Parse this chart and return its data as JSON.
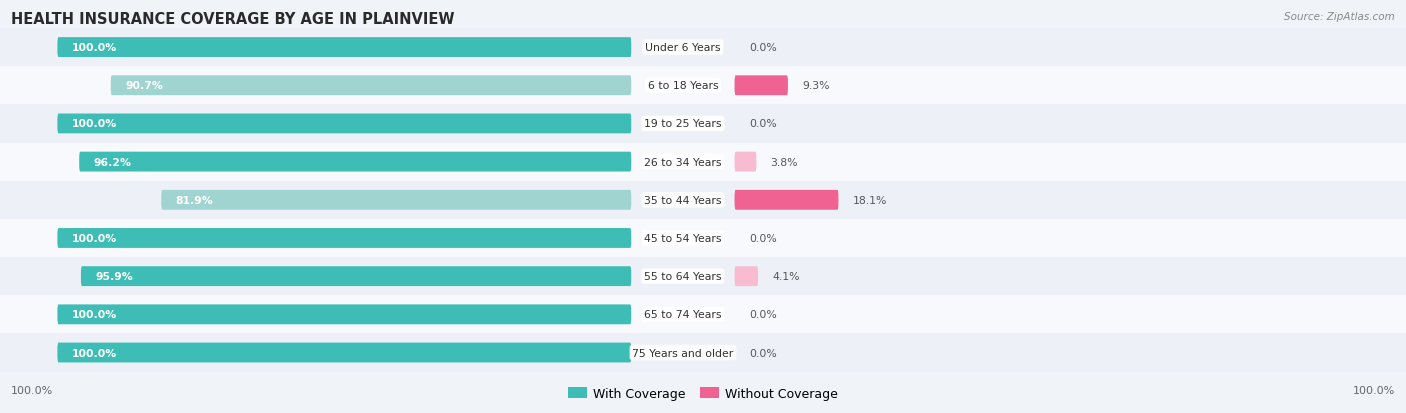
{
  "title": "HEALTH INSURANCE COVERAGE BY AGE IN PLAINVIEW",
  "source": "Source: ZipAtlas.com",
  "categories": [
    "Under 6 Years",
    "6 to 18 Years",
    "19 to 25 Years",
    "26 to 34 Years",
    "35 to 44 Years",
    "45 to 54 Years",
    "55 to 64 Years",
    "65 to 74 Years",
    "75 Years and older"
  ],
  "with_coverage": [
    100.0,
    90.7,
    100.0,
    96.2,
    81.9,
    100.0,
    95.9,
    100.0,
    100.0
  ],
  "without_coverage": [
    0.0,
    9.3,
    0.0,
    3.8,
    18.1,
    0.0,
    4.1,
    0.0,
    0.0
  ],
  "color_with_full": "#3dbdb5",
  "color_with_faded": "#a0d4d0",
  "color_without_full": "#f06292",
  "color_without_faded": "#f8bbd0",
  "row_color_light": "#edf1f7",
  "row_color_white": "#f7f9fc",
  "legend_with": "With Coverage",
  "legend_without": "Without Coverage",
  "axis_label_left": "100.0%",
  "axis_label_right": "100.0%"
}
